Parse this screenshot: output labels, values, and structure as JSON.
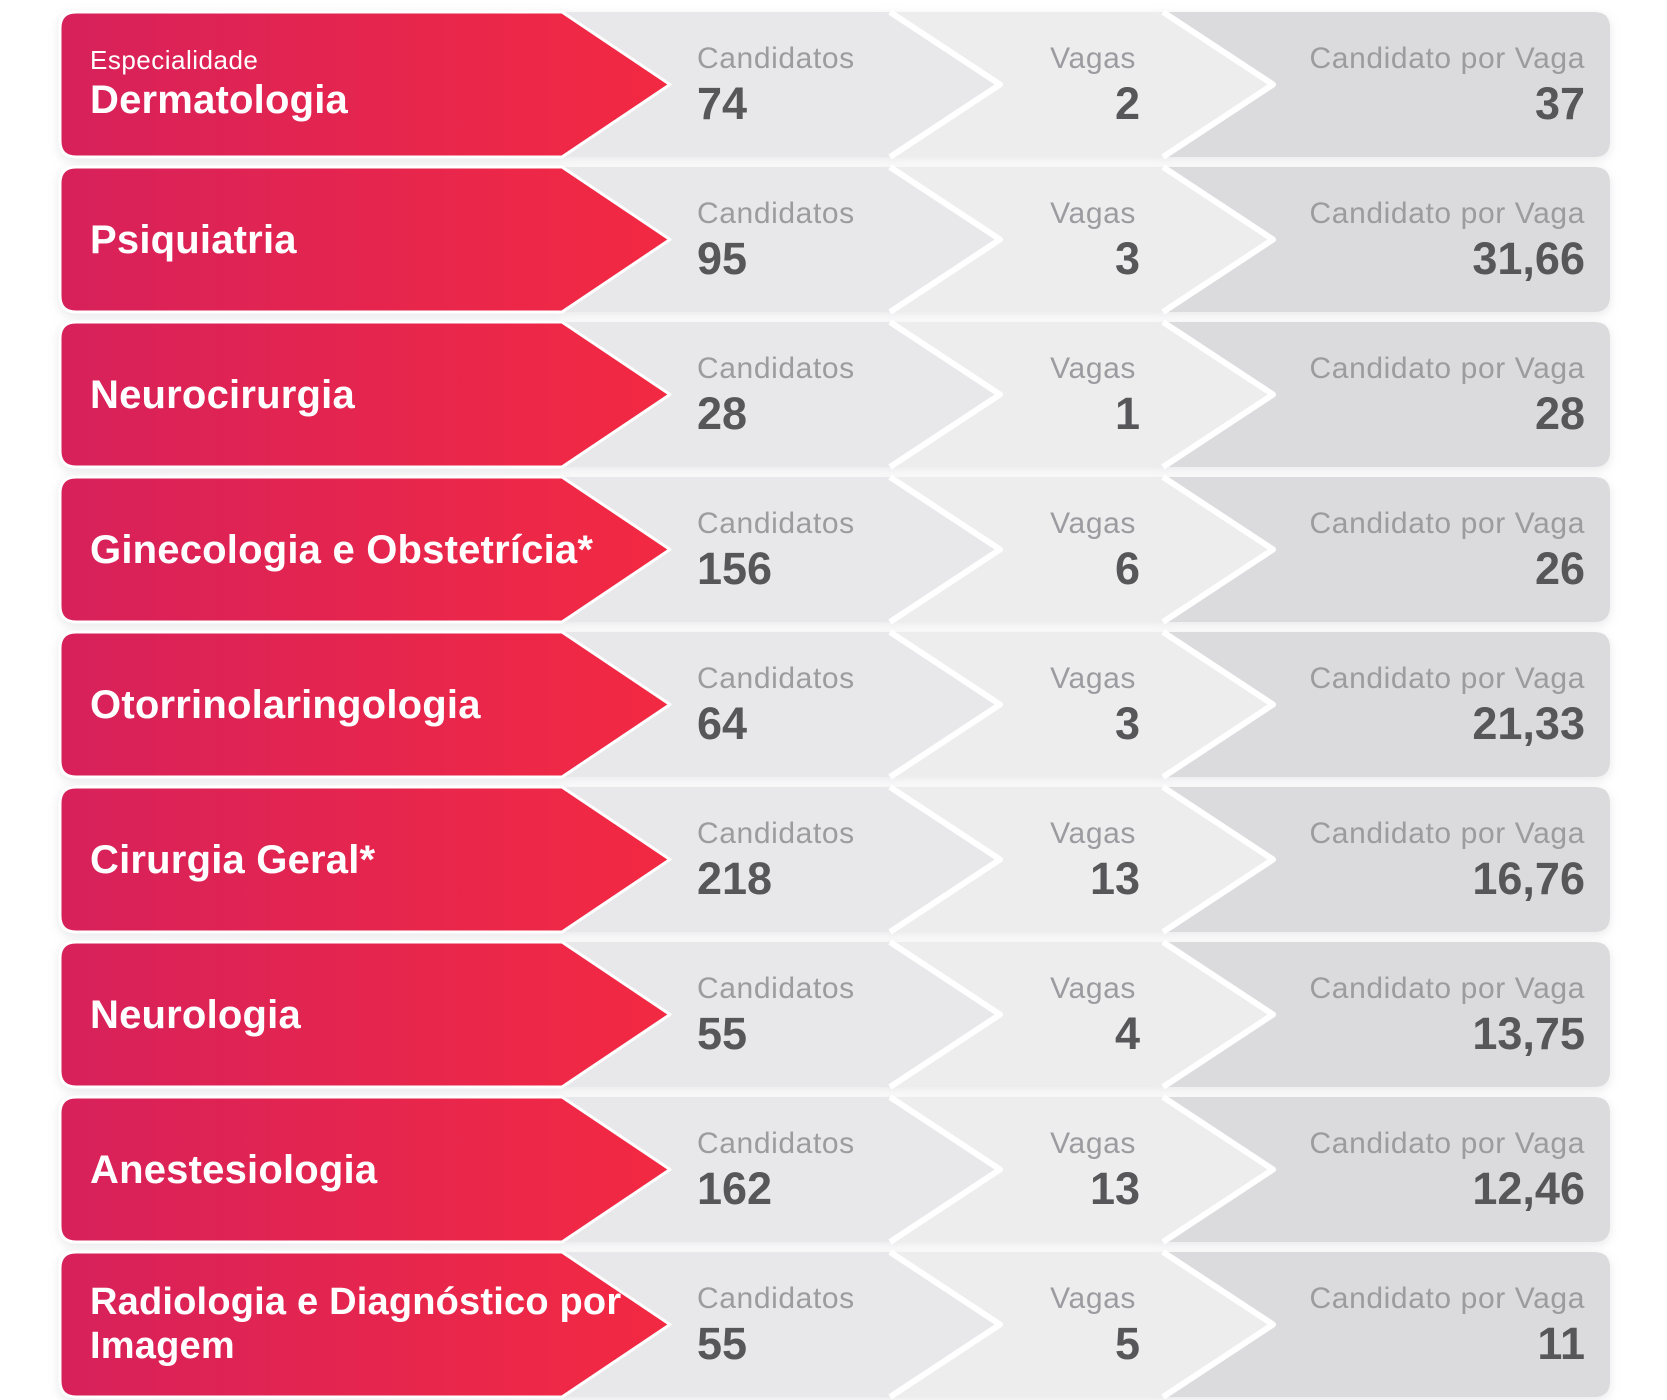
{
  "colors": {
    "red_start": "#d7215b",
    "red_end": "#f32942",
    "seg_candidatos": "#e8e8ea",
    "seg_vagas": "#ededee",
    "seg_por_vaga": "#dbdbdd",
    "separator": "#ffffff",
    "label": "#9c9ca0",
    "value": "#57575a",
    "name_text": "#ffffff"
  },
  "columns": {
    "eyebrow": "Especialidade",
    "candidatos": "Candidatos",
    "vagas": "Vagas",
    "por_vaga": "Candidato por Vaga"
  },
  "rows": [
    {
      "name": "Dermatologia",
      "candidatos": "74",
      "vagas": "2",
      "por_vaga": "37"
    },
    {
      "name": "Psiquiatria",
      "candidatos": "95",
      "vagas": "3",
      "por_vaga": "31,66"
    },
    {
      "name": "Neurocirurgia",
      "candidatos": "28",
      "vagas": "1",
      "por_vaga": "28"
    },
    {
      "name": "Ginecologia e Obstetrícia*",
      "candidatos": "156",
      "vagas": "6",
      "por_vaga": "26"
    },
    {
      "name": "Otorrinolaringologia",
      "candidatos": "64",
      "vagas": "3",
      "por_vaga": "21,33"
    },
    {
      "name": "Cirurgia Geral*",
      "candidatos": "218",
      "vagas": "13",
      "por_vaga": "16,76"
    },
    {
      "name": "Neurologia",
      "candidatos": "55",
      "vagas": "4",
      "por_vaga": "13,75"
    },
    {
      "name": "Anestesiologia",
      "candidatos": "162",
      "vagas": "13",
      "por_vaga": "12,46"
    },
    {
      "name": "Radiologia e Diagnóstico por Imagem",
      "candidatos": "55",
      "vagas": "5",
      "por_vaga": "11"
    }
  ],
  "chart_data": {
    "type": "table",
    "title": "Especialidade — Candidatos / Vagas / Candidato por Vaga",
    "columns": [
      "Especialidade",
      "Candidatos",
      "Vagas",
      "Candidato por Vaga"
    ],
    "rows": [
      [
        "Dermatologia",
        74,
        2,
        "37"
      ],
      [
        "Psiquiatria",
        95,
        3,
        "31,66"
      ],
      [
        "Neurocirurgia",
        28,
        1,
        "28"
      ],
      [
        "Ginecologia e Obstetrícia*",
        156,
        6,
        "26"
      ],
      [
        "Otorrinolaringologia",
        64,
        3,
        "21,33"
      ],
      [
        "Cirurgia Geral*",
        218,
        13,
        "16,76"
      ],
      [
        "Neurologia",
        55,
        4,
        "13,75"
      ],
      [
        "Anestesiologia",
        162,
        13,
        "12,46"
      ],
      [
        "Radiologia e Diagnóstico por Imagem",
        55,
        5,
        "11"
      ]
    ]
  }
}
